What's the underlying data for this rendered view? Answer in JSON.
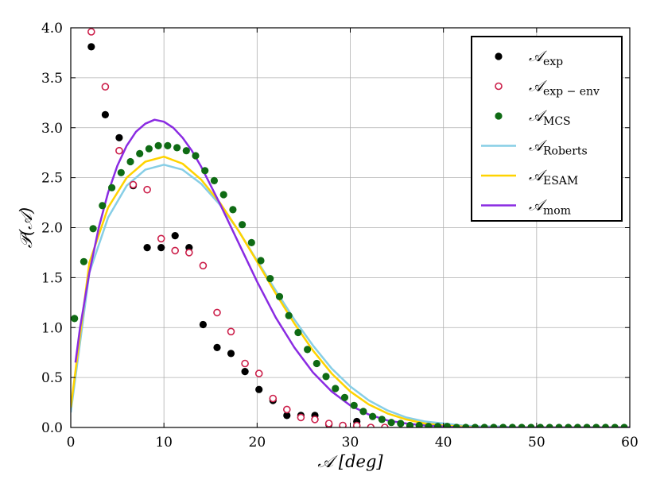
{
  "chart_data": {
    "type": "scatter",
    "title": "",
    "xlabel": "𝒜 [deg]",
    "ylabel": "𝒫(𝒜)",
    "xlim": [
      0,
      60
    ],
    "ylim": [
      0,
      4.0
    ],
    "x_ticks": [
      "0",
      "10",
      "20",
      "30",
      "40",
      "50",
      "60"
    ],
    "y_ticks": [
      "0.0",
      "0.5",
      "1.0",
      "1.5",
      "2.0",
      "2.5",
      "3.0",
      "3.5",
      "4.0"
    ],
    "grid": true,
    "legend_position": "top-right",
    "series": [
      {
        "name": "𝒜exp",
        "label_main": "𝒜",
        "label_sub": "exp",
        "kind": "marker-filled",
        "color": "#000000",
        "x": [
          2.2,
          3.7,
          5.2,
          6.7,
          8.2,
          9.7,
          11.2,
          12.7,
          14.2,
          15.7,
          17.2,
          18.7,
          20.2,
          21.7,
          23.2,
          24.7,
          26.2,
          27.7,
          29.2,
          30.7,
          32.2
        ],
        "y": [
          3.81,
          3.13,
          2.9,
          2.42,
          1.8,
          1.8,
          1.92,
          1.8,
          1.03,
          0.8,
          0.74,
          0.56,
          0.38,
          0.27,
          0.12,
          0.12,
          0.12,
          0.03,
          0.02,
          0.06,
          0.0
        ]
      },
      {
        "name": "𝒜exp − env",
        "label_main": "𝒜",
        "label_sub": "exp − env",
        "kind": "marker-open",
        "color": "#cc1f4a",
        "x": [
          2.2,
          3.7,
          5.2,
          6.7,
          8.2,
          9.7,
          11.2,
          12.7,
          14.2,
          15.7,
          17.2,
          18.7,
          20.2,
          21.7,
          23.2,
          24.7,
          26.2,
          27.7,
          29.2,
          30.7,
          32.2,
          33.7
        ],
        "y": [
          3.96,
          3.41,
          2.77,
          2.43,
          2.38,
          1.89,
          1.77,
          1.75,
          1.62,
          1.15,
          0.96,
          0.64,
          0.54,
          0.29,
          0.18,
          0.1,
          0.08,
          0.04,
          0.02,
          0.02,
          0.0,
          0.0
        ]
      },
      {
        "name": "𝒜MCS",
        "label_main": "𝒜",
        "label_sub": "MCS",
        "kind": "marker-filled",
        "color": "#0f6b14",
        "x": [
          0.4,
          1.4,
          2.4,
          3.4,
          4.4,
          5.4,
          6.4,
          7.4,
          8.4,
          9.4,
          10.4,
          11.4,
          12.4,
          13.4,
          14.4,
          15.4,
          16.4,
          17.4,
          18.4,
          19.4,
          20.4,
          21.4,
          22.4,
          23.4,
          24.4,
          25.4,
          26.4,
          27.4,
          28.4,
          29.4,
          30.4,
          31.4,
          32.4,
          33.4,
          34.4,
          35.4,
          36.4,
          37.4,
          38.4,
          39.4,
          40.4,
          41.4,
          42.4,
          43.4,
          44.4,
          45.4,
          46.4,
          47.4,
          48.4,
          49.4,
          50.4,
          51.4,
          52.4,
          53.4,
          54.4,
          55.4,
          56.4,
          57.4,
          58.4,
          59.4
        ],
        "y": [
          1.09,
          1.66,
          1.99,
          2.22,
          2.4,
          2.55,
          2.66,
          2.74,
          2.79,
          2.82,
          2.82,
          2.8,
          2.77,
          2.72,
          2.57,
          2.47,
          2.33,
          2.18,
          2.03,
          1.85,
          1.67,
          1.49,
          1.31,
          1.12,
          0.95,
          0.78,
          0.64,
          0.51,
          0.39,
          0.3,
          0.22,
          0.16,
          0.11,
          0.08,
          0.05,
          0.04,
          0.02,
          0.02,
          0.01,
          0.01,
          0.01,
          0.0,
          0.0,
          0.0,
          0.0,
          0.0,
          0.0,
          0.0,
          0.0,
          0.0,
          0.0,
          0.0,
          0.0,
          0.0,
          0.0,
          0.0,
          0.0,
          0.0,
          0.0,
          0.0
        ]
      },
      {
        "name": "𝒜Roberts",
        "label_main": "𝒜",
        "label_sub": "Roberts",
        "kind": "line",
        "color": "#87cee6",
        "x": [
          0,
          2,
          4,
          6,
          8,
          10,
          12,
          14,
          16,
          18,
          20,
          22,
          24,
          26,
          28,
          30,
          32,
          34,
          36,
          38,
          40,
          42,
          44,
          46,
          48,
          50,
          55,
          60
        ],
        "y": [
          0.15,
          1.55,
          2.1,
          2.42,
          2.58,
          2.63,
          2.58,
          2.44,
          2.23,
          1.97,
          1.67,
          1.37,
          1.08,
          0.82,
          0.59,
          0.41,
          0.27,
          0.17,
          0.1,
          0.06,
          0.04,
          0.02,
          0.01,
          0.01,
          0.0,
          0.0,
          0.0,
          0.0
        ]
      },
      {
        "name": "𝒜ESAM",
        "label_main": "𝒜",
        "label_sub": "ESAM",
        "kind": "line",
        "color": "#ffd300",
        "x": [
          0,
          2,
          4,
          6,
          8,
          10,
          12,
          14,
          16,
          18,
          20,
          22,
          24,
          26,
          28,
          30,
          32,
          34,
          36,
          38,
          40,
          42,
          44,
          46,
          48,
          50,
          55,
          60
        ],
        "y": [
          0.2,
          1.65,
          2.2,
          2.5,
          2.66,
          2.71,
          2.64,
          2.48,
          2.25,
          1.97,
          1.66,
          1.34,
          1.04,
          0.77,
          0.54,
          0.36,
          0.23,
          0.14,
          0.08,
          0.04,
          0.02,
          0.01,
          0.0,
          0.0,
          0.0,
          0.0,
          0.0,
          0.0
        ]
      },
      {
        "name": "𝒜mom",
        "label_main": "𝒜",
        "label_sub": "mom",
        "kind": "line",
        "color": "#8a2be2",
        "x": [
          0.5,
          1,
          2,
          3,
          4,
          5,
          6,
          7,
          8,
          9,
          10,
          11,
          12,
          13,
          14,
          16,
          18,
          20,
          22,
          24,
          26,
          28,
          30,
          32,
          34,
          36,
          38,
          40,
          42,
          45,
          50,
          55,
          60
        ],
        "y": [
          0.65,
          1.0,
          1.55,
          2.0,
          2.35,
          2.62,
          2.82,
          2.96,
          3.04,
          3.08,
          3.06,
          3.0,
          2.9,
          2.77,
          2.61,
          2.24,
          1.85,
          1.46,
          1.1,
          0.8,
          0.55,
          0.36,
          0.22,
          0.13,
          0.07,
          0.04,
          0.02,
          0.01,
          0.0,
          0.0,
          0.0,
          0.0,
          0.0
        ]
      }
    ]
  }
}
